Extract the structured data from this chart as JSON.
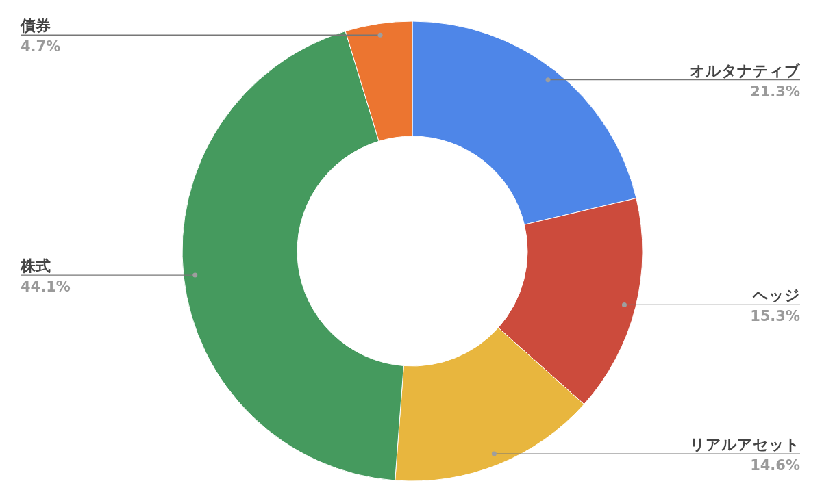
{
  "chart_data": {
    "type": "donut",
    "categories": [
      "オルタナティブ",
      "ヘッジ",
      "リアルアセット",
      "株式",
      "債券"
    ],
    "values": [
      21.3,
      15.3,
      14.6,
      44.1,
      4.7
    ],
    "value_labels": [
      "21.3%",
      "15.3%",
      "14.6%",
      "44.1%",
      "4.7%"
    ],
    "colors": [
      "#4e86e8",
      "#cc4b3c",
      "#e8b63e",
      "#459a5e",
      "#ec7530"
    ]
  }
}
